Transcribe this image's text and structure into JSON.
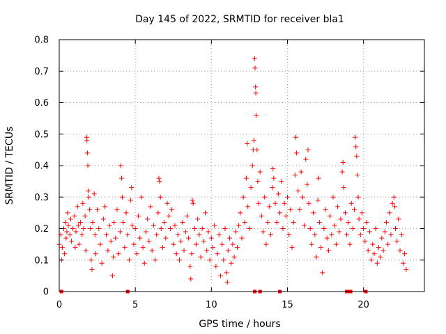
{
  "chart_data": {
    "type": "scatter",
    "title": "Day 145 of 2022, SRMTID for receiver bla1",
    "xlabel": "GPS time / hours",
    "ylabel": "SRMTID / TECUs",
    "xlim": [
      0,
      24
    ],
    "ylim": [
      0,
      0.8
    ],
    "x_ticks": [
      0,
      5,
      10,
      15,
      20
    ],
    "y_ticks": [
      0,
      0.1,
      0.2,
      0.3,
      0.4,
      0.5,
      0.6,
      0.7,
      0.8
    ],
    "x_tick_labels": [
      "0",
      "5",
      "10",
      "15",
      "20"
    ],
    "y_tick_labels": [
      "0",
      "0.1",
      "0.2",
      "0.3",
      "0.4",
      "0.5",
      "0.6",
      "0.7",
      "0.8"
    ],
    "grid": true,
    "marker": "+",
    "color": "#ff0000",
    "series": [
      {
        "name": "SRMTID",
        "points": [
          [
            0.0,
            0.15
          ],
          [
            0.1,
            0.18
          ],
          [
            0.15,
            0.1
          ],
          [
            0.2,
            0.14
          ],
          [
            0.3,
            0.2
          ],
          [
            0.35,
            0.12
          ],
          [
            0.4,
            0.22
          ],
          [
            0.45,
            0.17
          ],
          [
            0.5,
            0.19
          ],
          [
            0.55,
            0.25
          ],
          [
            0.6,
            0.21
          ],
          [
            0.7,
            0.18
          ],
          [
            0.75,
            0.23
          ],
          [
            0.8,
            0.16
          ],
          [
            0.9,
            0.2
          ],
          [
            1.0,
            0.24
          ],
          [
            1.05,
            0.14
          ],
          [
            1.1,
            0.19
          ],
          [
            1.2,
            0.27
          ],
          [
            1.25,
            0.21
          ],
          [
            1.3,
            0.15
          ],
          [
            1.4,
            0.22
          ],
          [
            1.5,
            0.18
          ],
          [
            1.55,
            0.28
          ],
          [
            1.6,
            0.2
          ],
          [
            1.7,
            0.24
          ],
          [
            1.75,
            0.13
          ],
          [
            1.8,
            0.49
          ],
          [
            1.82,
            0.48
          ],
          [
            1.85,
            0.44
          ],
          [
            1.88,
            0.4
          ],
          [
            1.9,
            0.32
          ],
          [
            1.95,
            0.3
          ],
          [
            2.0,
            0.26
          ],
          [
            2.05,
            0.2
          ],
          [
            2.1,
            0.1
          ],
          [
            2.15,
            0.07
          ],
          [
            2.2,
            0.22
          ],
          [
            2.3,
            0.31
          ],
          [
            2.35,
            0.18
          ],
          [
            2.4,
            0.12
          ],
          [
            2.5,
            0.26
          ],
          [
            2.6,
            0.2
          ],
          [
            2.7,
            0.15
          ],
          [
            2.8,
            0.09
          ],
          [
            2.9,
            0.23
          ],
          [
            3.0,
            0.27
          ],
          [
            3.1,
            0.18
          ],
          [
            3.2,
            0.13
          ],
          [
            3.3,
            0.21
          ],
          [
            3.4,
            0.16
          ],
          [
            3.5,
            0.05
          ],
          [
            3.55,
            0.11
          ],
          [
            3.6,
            0.22
          ],
          [
            3.7,
            0.17
          ],
          [
            3.8,
            0.26
          ],
          [
            3.9,
            0.12
          ],
          [
            4.0,
            0.19
          ],
          [
            4.05,
            0.4
          ],
          [
            4.1,
            0.36
          ],
          [
            4.15,
            0.3
          ],
          [
            4.2,
            0.22
          ],
          [
            4.3,
            0.14
          ],
          [
            4.4,
            0.25
          ],
          [
            4.5,
            0.18
          ],
          [
            4.6,
            0.1
          ],
          [
            4.7,
            0.29
          ],
          [
            4.75,
            0.33
          ],
          [
            4.8,
            0.21
          ],
          [
            4.9,
            0.15
          ],
          [
            5.0,
            0.2
          ],
          [
            5.1,
            0.12
          ],
          [
            5.2,
            0.24
          ],
          [
            5.3,
            0.17
          ],
          [
            5.4,
            0.3
          ],
          [
            5.5,
            0.14
          ],
          [
            5.6,
            0.09
          ],
          [
            5.7,
            0.19
          ],
          [
            5.8,
            0.23
          ],
          [
            5.9,
            0.16
          ],
          [
            6.0,
            0.27
          ],
          [
            6.1,
            0.13
          ],
          [
            6.2,
            0.21
          ],
          [
            6.3,
            0.1
          ],
          [
            6.4,
            0.18
          ],
          [
            6.5,
            0.25
          ],
          [
            6.55,
            0.36
          ],
          [
            6.6,
            0.35
          ],
          [
            6.65,
            0.3
          ],
          [
            6.7,
            0.2
          ],
          [
            6.8,
            0.14
          ],
          [
            6.9,
            0.22
          ],
          [
            7.0,
            0.17
          ],
          [
            7.1,
            0.28
          ],
          [
            7.2,
            0.24
          ],
          [
            7.3,
            0.2
          ],
          [
            7.4,
            0.26
          ],
          [
            7.5,
            0.15
          ],
          [
            7.6,
            0.21
          ],
          [
            7.7,
            0.12
          ],
          [
            7.8,
            0.18
          ],
          [
            7.9,
            0.1
          ],
          [
            8.0,
            0.16
          ],
          [
            8.1,
            0.22
          ],
          [
            8.2,
            0.13
          ],
          [
            8.3,
            0.19
          ],
          [
            8.4,
            0.24
          ],
          [
            8.5,
            0.17
          ],
          [
            8.6,
            0.08
          ],
          [
            8.65,
            0.04
          ],
          [
            8.7,
            0.12
          ],
          [
            8.75,
            0.29
          ],
          [
            8.8,
            0.28
          ],
          [
            8.9,
            0.2
          ],
          [
            9.0,
            0.15
          ],
          [
            9.1,
            0.23
          ],
          [
            9.2,
            0.18
          ],
          [
            9.3,
            0.11
          ],
          [
            9.4,
            0.2
          ],
          [
            9.5,
            0.16
          ],
          [
            9.6,
            0.25
          ],
          [
            9.7,
            0.13
          ],
          [
            9.8,
            0.19
          ],
          [
            9.9,
            0.1
          ],
          [
            10.0,
            0.17
          ],
          [
            10.1,
            0.14
          ],
          [
            10.2,
            0.21
          ],
          [
            10.3,
            0.08
          ],
          [
            10.4,
            0.12
          ],
          [
            10.5,
            0.18
          ],
          [
            10.6,
            0.05
          ],
          [
            10.7,
            0.15
          ],
          [
            10.8,
            0.1
          ],
          [
            10.9,
            0.2
          ],
          [
            11.0,
            0.06
          ],
          [
            11.05,
            0.03
          ],
          [
            11.1,
            0.13
          ],
          [
            11.2,
            0.17
          ],
          [
            11.3,
            0.09
          ],
          [
            11.4,
            0.15
          ],
          [
            11.5,
            0.11
          ],
          [
            11.6,
            0.19
          ],
          [
            11.7,
            0.14
          ],
          [
            11.8,
            0.21
          ],
          [
            11.9,
            0.25
          ],
          [
            12.0,
            0.17
          ],
          [
            12.1,
            0.3
          ],
          [
            12.2,
            0.22
          ],
          [
            12.3,
            0.36
          ],
          [
            12.35,
            0.47
          ],
          [
            12.4,
            0.27
          ],
          [
            12.5,
            0.2
          ],
          [
            12.6,
            0.33
          ],
          [
            12.7,
            0.4
          ],
          [
            12.75,
            0.45
          ],
          [
            12.8,
            0.48
          ],
          [
            12.85,
            0.74
          ],
          [
            12.87,
            0.71
          ],
          [
            12.9,
            0.65
          ],
          [
            12.92,
            0.63
          ],
          [
            12.95,
            0.56
          ],
          [
            13.0,
            0.45
          ],
          [
            13.05,
            0.35
          ],
          [
            13.1,
            0.28
          ],
          [
            13.2,
            0.38
          ],
          [
            13.3,
            0.24
          ],
          [
            13.4,
            0.19
          ],
          [
            13.5,
            0.3
          ],
          [
            13.6,
            0.15
          ],
          [
            13.7,
            0.22
          ],
          [
            13.8,
            0.27
          ],
          [
            13.9,
            0.18
          ],
          [
            14.0,
            0.33
          ],
          [
            14.05,
            0.39
          ],
          [
            14.1,
            0.36
          ],
          [
            14.2,
            0.28
          ],
          [
            14.3,
            0.22
          ],
          [
            14.4,
            0.31
          ],
          [
            14.5,
            0.25
          ],
          [
            14.6,
            0.35
          ],
          [
            14.7,
            0.2
          ],
          [
            14.8,
            0.28
          ],
          [
            14.9,
            0.24
          ],
          [
            15.0,
            0.3
          ],
          [
            15.1,
            0.18
          ],
          [
            15.2,
            0.26
          ],
          [
            15.3,
            0.14
          ],
          [
            15.4,
            0.22
          ],
          [
            15.5,
            0.37
          ],
          [
            15.55,
            0.49
          ],
          [
            15.6,
            0.44
          ],
          [
            15.7,
            0.32
          ],
          [
            15.8,
            0.26
          ],
          [
            15.9,
            0.38
          ],
          [
            16.0,
            0.3
          ],
          [
            16.1,
            0.21
          ],
          [
            16.2,
            0.42
          ],
          [
            16.3,
            0.34
          ],
          [
            16.35,
            0.45
          ],
          [
            16.4,
            0.28
          ],
          [
            16.5,
            0.2
          ],
          [
            16.6,
            0.15
          ],
          [
            16.7,
            0.25
          ],
          [
            16.8,
            0.18
          ],
          [
            16.9,
            0.11
          ],
          [
            17.0,
            0.29
          ],
          [
            17.05,
            0.36
          ],
          [
            17.1,
            0.22
          ],
          [
            17.2,
            0.14
          ],
          [
            17.3,
            0.06
          ],
          [
            17.4,
            0.2
          ],
          [
            17.5,
            0.26
          ],
          [
            17.6,
            0.17
          ],
          [
            17.7,
            0.13
          ],
          [
            17.8,
            0.24
          ],
          [
            17.9,
            0.18
          ],
          [
            18.0,
            0.3
          ],
          [
            18.1,
            0.21
          ],
          [
            18.2,
            0.15
          ],
          [
            18.3,
            0.27
          ],
          [
            18.4,
            0.19
          ],
          [
            18.5,
            0.23
          ],
          [
            18.6,
            0.38
          ],
          [
            18.65,
            0.41
          ],
          [
            18.7,
            0.33
          ],
          [
            18.8,
            0.25
          ],
          [
            18.9,
            0.18
          ],
          [
            19.0,
            0.22
          ],
          [
            19.1,
            0.15
          ],
          [
            19.2,
            0.28
          ],
          [
            19.3,
            0.2
          ],
          [
            19.4,
            0.26
          ],
          [
            19.45,
            0.49
          ],
          [
            19.5,
            0.46
          ],
          [
            19.55,
            0.43
          ],
          [
            19.6,
            0.37
          ],
          [
            19.65,
            0.3
          ],
          [
            19.7,
            0.23
          ],
          [
            19.8,
            0.18
          ],
          [
            19.9,
            0.25
          ],
          [
            20.0,
            0.2
          ],
          [
            20.1,
            0.16
          ],
          [
            20.2,
            0.22
          ],
          [
            20.3,
            0.13
          ],
          [
            20.4,
            0.19
          ],
          [
            20.5,
            0.1
          ],
          [
            20.6,
            0.15
          ],
          [
            20.7,
            0.12
          ],
          [
            20.8,
            0.2
          ],
          [
            20.9,
            0.09
          ],
          [
            21.0,
            0.14
          ],
          [
            21.1,
            0.11
          ],
          [
            21.2,
            0.17
          ],
          [
            21.3,
            0.13
          ],
          [
            21.4,
            0.19
          ],
          [
            21.5,
            0.22
          ],
          [
            21.6,
            0.15
          ],
          [
            21.7,
            0.25
          ],
          [
            21.8,
            0.18
          ],
          [
            21.9,
            0.28
          ],
          [
            22.0,
            0.3
          ],
          [
            22.05,
            0.27
          ],
          [
            22.1,
            0.2
          ],
          [
            22.2,
            0.16
          ],
          [
            22.3,
            0.23
          ],
          [
            22.4,
            0.13
          ],
          [
            22.5,
            0.18
          ],
          [
            22.6,
            0.09
          ],
          [
            22.7,
            0.12
          ],
          [
            22.8,
            0.07
          ]
        ]
      }
    ],
    "zero_markers": [
      0.15,
      4.5,
      12.85,
      13.2,
      14.5,
      18.9,
      19.05,
      19.15,
      20.15
    ]
  }
}
